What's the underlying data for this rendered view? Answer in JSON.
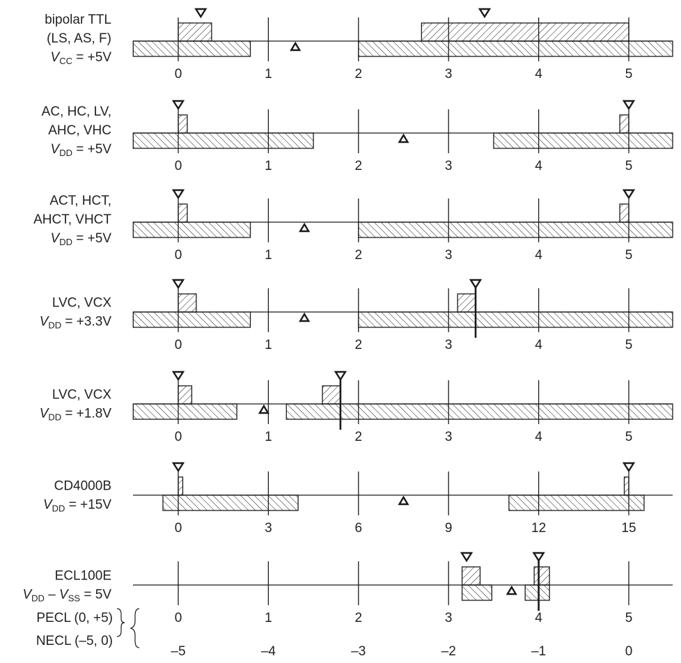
{
  "rows": [
    {
      "label_lines": [
        {
          "text": "bipolar TTL"
        },
        {
          "text": "(LS, AS, F)"
        },
        {
          "text": "V",
          "sub": "CC",
          "tail": " = +5V"
        }
      ],
      "ticks": [
        "0",
        "1",
        "2",
        "3",
        "4",
        "5"
      ],
      "output_low": [
        0,
        0.37
      ],
      "output_high": [
        2.7,
        5.0
      ],
      "input_low": [
        -0.5,
        0.8
      ],
      "input_high": [
        2.0,
        5.5
      ],
      "typ_out_low": 0.25,
      "typ_out_high": 3.4,
      "switch_point": 1.3
    },
    {
      "label_lines": [
        {
          "text": "AC, HC, LV,"
        },
        {
          "text": "AHC, VHC"
        },
        {
          "text": "V",
          "sub": "DD",
          "tail": " = +5V"
        }
      ],
      "ticks": [
        "0",
        "1",
        "2",
        "3",
        "4",
        "5"
      ],
      "output_low": [
        0,
        0.1
      ],
      "output_high": [
        4.9,
        5.0
      ],
      "input_low": [
        -0.5,
        1.5
      ],
      "input_high": [
        3.5,
        5.5
      ],
      "typ_out_low": 0,
      "typ_out_high": 5,
      "switch_point": 2.5
    },
    {
      "label_lines": [
        {
          "text": "ACT, HCT,"
        },
        {
          "text": "AHCT, VHCT"
        },
        {
          "text": "V",
          "sub": "DD",
          "tail": " = +5V"
        }
      ],
      "ticks": [
        "0",
        "1",
        "2",
        "3",
        "4",
        "5"
      ],
      "output_low": [
        0,
        0.1
      ],
      "output_high": [
        4.9,
        5.0
      ],
      "input_low": [
        -0.5,
        0.8
      ],
      "input_high": [
        2.0,
        5.5
      ],
      "typ_out_low": 0,
      "typ_out_high": 5,
      "switch_point": 1.4
    },
    {
      "label_lines": [
        {
          "text": "LVC, VCX"
        },
        {
          "text": "V",
          "sub": "DD",
          "tail": " = +3.3V"
        }
      ],
      "ticks": [
        "0",
        "1",
        "2",
        "3",
        "4",
        "5"
      ],
      "output_low": [
        0,
        0.2
      ],
      "output_high": [
        3.1,
        3.3
      ],
      "input_low": [
        -0.5,
        0.8
      ],
      "input_high": [
        2.0,
        5.5
      ],
      "typ_out_low": 0,
      "typ_out_high": 3.3,
      "switch_point": 1.4,
      "supply": 3.3
    },
    {
      "label_lines": [
        {
          "text": "LVC, VCX"
        },
        {
          "text": "V",
          "sub": "DD",
          "tail": " = +1.8V"
        }
      ],
      "ticks": [
        "0",
        "1",
        "2",
        "3",
        "4",
        "5"
      ],
      "output_low": [
        0,
        0.15
      ],
      "output_high": [
        1.6,
        1.8
      ],
      "input_low": [
        -0.5,
        0.65
      ],
      "input_high": [
        1.2,
        5.5
      ],
      "typ_out_low": 0,
      "typ_out_high": 1.8,
      "switch_point": 0.95,
      "supply": 1.8
    },
    {
      "label_lines": [
        {
          "text": "CD4000B"
        },
        {
          "text": "V",
          "sub": "DD",
          "tail": " = +15V"
        }
      ],
      "ticks": [
        "0",
        "3",
        "6",
        "9",
        "12",
        "15"
      ],
      "output_low": [
        0,
        0.05
      ],
      "output_high": [
        4.95,
        5.0
      ],
      "input_low": [
        -0.17,
        1.33
      ],
      "input_high": [
        3.67,
        5.17
      ],
      "typ_out_low": 0,
      "typ_out_high": 5,
      "switch_point": 2.5
    },
    {
      "label_lines": [
        {
          "text": "ECL100E"
        },
        {
          "text": "V",
          "sub": "DD",
          "tail": " – V",
          "sub2": "SS",
          "tail2": " = 5V"
        }
      ],
      "ticks": [
        "0",
        "1",
        "2",
        "3",
        "4",
        "5"
      ],
      "ticks_secondary": [
        "–5",
        "–4",
        "–3",
        "–2",
        "–1",
        "0"
      ],
      "tick_labels_left": [
        "PECL (0, +5)",
        "NECL (–5, 0)"
      ],
      "output_low": [
        3.15,
        3.35
      ],
      "output_high": [
        3.95,
        4.12
      ],
      "input_low": [
        3.15,
        3.48
      ],
      "input_high": [
        3.85,
        4.12
      ],
      "typ_out_low": 3.2,
      "typ_out_high": 4.0,
      "switch_point": 3.7,
      "supply": 4.0
    }
  ]
}
